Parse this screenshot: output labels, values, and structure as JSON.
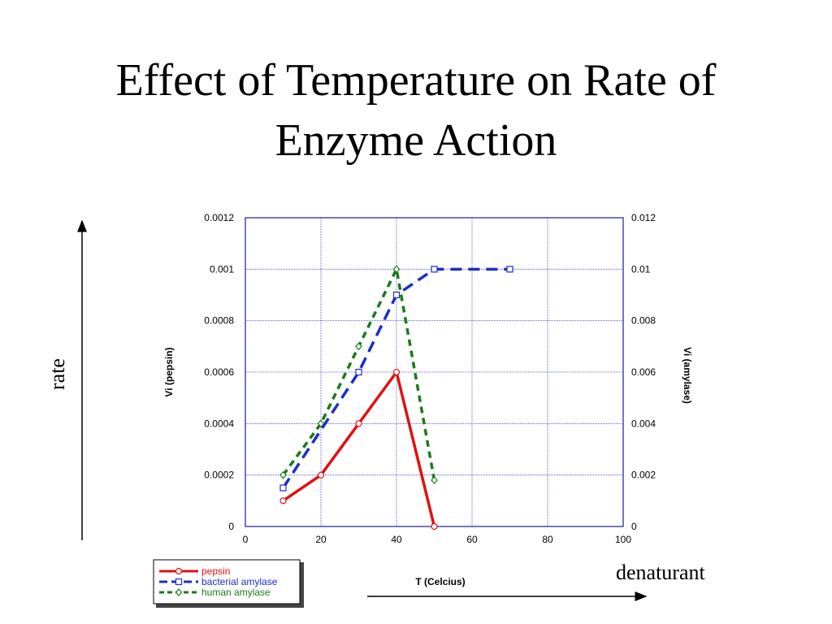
{
  "slide": {
    "title_line1": "Effect of Temperature on Rate of",
    "title_line2": "Enzyme Action",
    "left_arrow_label": "rate",
    "bottom_arrow_label": "denaturant"
  },
  "chart_data": {
    "type": "line",
    "xlabel": "T (Celcius)",
    "ylabel_left": "Vi (pepsin)",
    "ylabel_right": "Vi (amylase)",
    "xlim": [
      0,
      100
    ],
    "ylim_left": [
      0,
      0.0012
    ],
    "ylim_right": [
      0,
      0.012
    ],
    "x_ticks": [
      "0",
      "20",
      "40",
      "60",
      "80",
      "100"
    ],
    "y_ticks_left": [
      "0",
      "0.0002",
      "0.0004",
      "0.0006",
      "0.0008",
      "0.001",
      "0.0012"
    ],
    "y_ticks_right": [
      "0",
      "0.002",
      "0.004",
      "0.006",
      "0.008",
      "0.01",
      "0.012"
    ],
    "grid": true,
    "legend_position": "bottom-left",
    "series": [
      {
        "name": "pepsin",
        "axis": "left",
        "color": "#e01010",
        "marker": "circle",
        "dash": "solid",
        "points": [
          [
            10,
            0.0001
          ],
          [
            20,
            0.0002
          ],
          [
            30,
            0.0004
          ],
          [
            40,
            0.0006
          ],
          [
            50,
            0
          ]
        ]
      },
      {
        "name": "bacterial amylase",
        "axis": "right",
        "color": "#1a2fc8",
        "marker": "square",
        "dash": "long-dash",
        "points": [
          [
            10,
            0.0015
          ],
          [
            30,
            0.006
          ],
          [
            40,
            0.009
          ],
          [
            50,
            0.01
          ],
          [
            70,
            0.01
          ]
        ]
      },
      {
        "name": "human amylase",
        "axis": "right",
        "color": "#1a7a1a",
        "marker": "diamond",
        "dash": "dash",
        "points": [
          [
            10,
            0.002
          ],
          [
            20,
            0.004
          ],
          [
            30,
            0.007
          ],
          [
            40,
            0.01
          ],
          [
            50,
            0.0018
          ]
        ]
      }
    ]
  }
}
